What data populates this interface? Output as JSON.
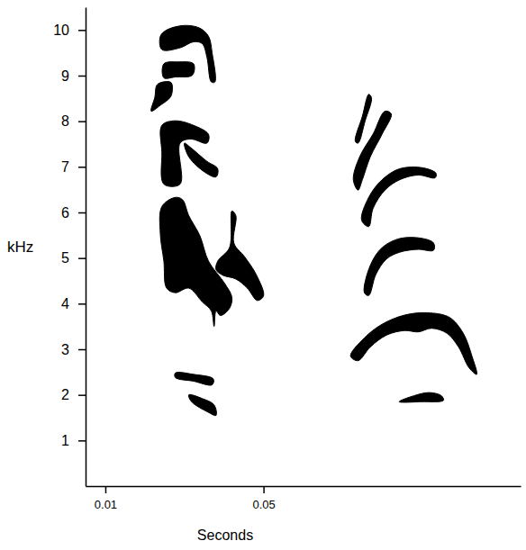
{
  "chart_data": {
    "type": "spectrogram",
    "x_label": "Seconds",
    "y_label": "kHz",
    "color": "#000000",
    "xlim": [
      0.005,
      0.115
    ],
    "xticks": [
      0.01,
      0.05
    ],
    "ylim": [
      0,
      10.5
    ],
    "yticks": [
      1,
      2,
      3,
      4,
      5,
      6,
      7,
      8,
      9,
      10
    ],
    "shapes": [
      {
        "x": [
          0.0239,
          0.0255,
          0.03,
          0.0339,
          0.0361,
          0.037,
          0.0377,
          0.0368,
          0.0357,
          0.0345,
          0.0323,
          0.0289,
          0.0243
        ],
        "y": [
          9.86,
          10.0,
          10.1,
          10.04,
          9.86,
          9.5,
          8.86,
          8.86,
          9.4,
          9.7,
          9.74,
          9.61,
          9.57
        ]
      },
      {
        "x": [
          0.0248,
          0.0284,
          0.0323,
          0.032,
          0.0277,
          0.0248
        ],
        "y": [
          9.26,
          9.3,
          9.26,
          9.01,
          8.97,
          8.95
        ]
      },
      {
        "x": [
          0.0232,
          0.0266,
          0.0266,
          0.0239,
          0.0216,
          0.0225
        ],
        "y": [
          8.81,
          8.85,
          8.55,
          8.35,
          8.22,
          8.52
        ]
      },
      {
        "x": [
          0.0243,
          0.0277,
          0.0323,
          0.0361,
          0.0357,
          0.0316,
          0.0289,
          0.0289,
          0.0248,
          0.0243
        ],
        "y": [
          7.91,
          8.01,
          7.91,
          7.71,
          7.52,
          7.61,
          7.52,
          6.62,
          6.62,
          7.32
        ]
      },
      {
        "x": [
          0.03,
          0.0316,
          0.0357,
          0.0384,
          0.038,
          0.0352,
          0.0311
        ],
        "y": [
          7.52,
          7.42,
          7.12,
          6.96,
          6.78,
          6.88,
          7.22
        ]
      },
      {
        "x": [
          0.0243,
          0.0277,
          0.0295,
          0.0311,
          0.0339,
          0.0361,
          0.0402,
          0.042,
          0.0414,
          0.0391,
          0.038,
          0.0375,
          0.0368,
          0.0345,
          0.0311,
          0.0277,
          0.0255,
          0.0248,
          0.0239
        ],
        "y": [
          6.13,
          6.33,
          6.28,
          5.93,
          5.49,
          4.93,
          4.44,
          4.14,
          3.9,
          3.74,
          3.84,
          3.5,
          3.84,
          4.04,
          4.34,
          4.24,
          4.34,
          4.93,
          5.53
        ]
      },
      {
        "x": [
          0.0384,
          0.0414,
          0.042,
          0.043,
          0.0425,
          0.0452,
          0.0482,
          0.05,
          0.0484,
          0.0459,
          0.043,
          0.0398,
          0.038
        ],
        "y": [
          4.93,
          5.23,
          6.03,
          5.93,
          5.33,
          5.03,
          4.63,
          4.17,
          4.07,
          4.34,
          4.54,
          4.62,
          4.74
        ]
      },
      {
        "x": [
          0.0277,
          0.0323,
          0.0373,
          0.037,
          0.0323,
          0.0277
        ],
        "y": [
          2.48,
          2.45,
          2.35,
          2.22,
          2.3,
          2.38
        ]
      },
      {
        "x": [
          0.0311,
          0.0345,
          0.0375,
          0.038,
          0.036,
          0.0318
        ],
        "y": [
          2.0,
          1.92,
          1.78,
          1.55,
          1.62,
          1.85
        ]
      },
      {
        "x": [
          0.0732,
          0.075,
          0.0766,
          0.0773,
          0.0757,
          0.0739
        ],
        "y": [
          7.56,
          8.11,
          8.59,
          8.51,
          8.01,
          7.52
        ]
      },
      {
        "x": [
          0.0727,
          0.0743,
          0.0777,
          0.0807,
          0.0823,
          0.08,
          0.077,
          0.075,
          0.0739
        ],
        "y": [
          6.72,
          7.22,
          7.72,
          8.22,
          8.16,
          7.72,
          7.22,
          6.72,
          6.49
        ]
      },
      {
        "x": [
          0.0748,
          0.0766,
          0.08,
          0.0845,
          0.0902,
          0.0936,
          0.0934,
          0.0891,
          0.0845,
          0.0807,
          0.0777,
          0.0766
        ],
        "y": [
          5.83,
          6.33,
          6.72,
          6.96,
          6.98,
          6.86,
          6.76,
          6.82,
          6.72,
          6.49,
          6.09,
          5.69
        ]
      },
      {
        "x": [
          0.0755,
          0.077,
          0.08,
          0.0845,
          0.0902,
          0.093,
          0.093,
          0.0891,
          0.0845,
          0.0811,
          0.0784,
          0.0766
        ],
        "y": [
          4.24,
          4.84,
          5.23,
          5.43,
          5.43,
          5.33,
          5.17,
          5.19,
          5.13,
          4.98,
          4.64,
          4.18
        ]
      },
      {
        "x": [
          0.072,
          0.0755,
          0.08,
          0.0857,
          0.0914,
          0.097,
          0.1005,
          0.1027,
          0.1039,
          0.102,
          0.0993,
          0.0964,
          0.0925,
          0.0891,
          0.0857,
          0.0811,
          0.077,
          0.0739
        ],
        "y": [
          2.85,
          3.25,
          3.55,
          3.75,
          3.8,
          3.7,
          3.35,
          2.85,
          2.45,
          2.59,
          3.05,
          3.35,
          3.46,
          3.38,
          3.41,
          3.31,
          3.05,
          2.75
        ]
      },
      {
        "x": [
          0.0843,
          0.088,
          0.092,
          0.095,
          0.0955,
          0.09
        ],
        "y": [
          1.85,
          1.98,
          2.05,
          1.98,
          1.88,
          1.85
        ]
      }
    ]
  }
}
